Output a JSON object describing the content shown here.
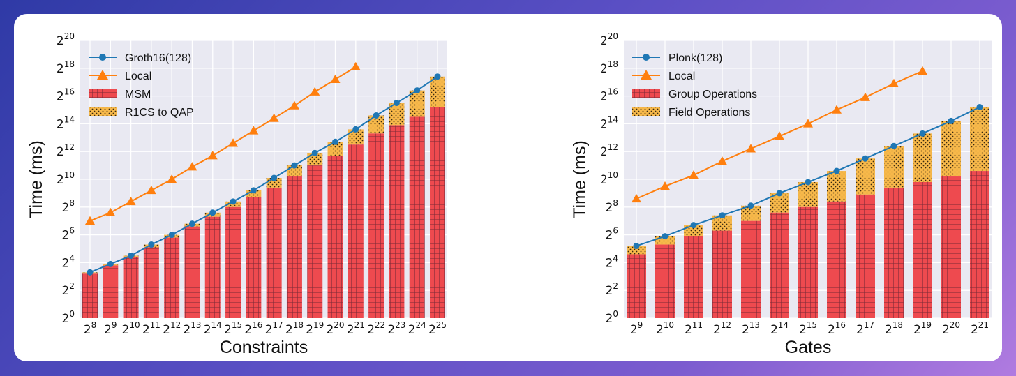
{
  "colors": {
    "series_line": "#1f77b4",
    "local_line": "#ff7f0e",
    "bar_bottom": "#ee4a4f",
    "bar_bottom_grid": "#7a2a36",
    "bar_top": "#f7b84a",
    "bar_top_dots": "#3a2a10",
    "plot_bg": "#e9e9f2",
    "grid": "#ffffff"
  },
  "chart_data": [
    {
      "type": "bar",
      "title": "",
      "xlabel": "Constraints",
      "ylabel": "Time (ms)",
      "y_scale": "log2",
      "ylim_exp": [
        0,
        20
      ],
      "y_ticks": [
        {
          "base": "2",
          "exp": "0"
        },
        {
          "base": "2",
          "exp": "2"
        },
        {
          "base": "2",
          "exp": "4"
        },
        {
          "base": "2",
          "exp": "6"
        },
        {
          "base": "2",
          "exp": "8"
        },
        {
          "base": "2",
          "exp": "10"
        },
        {
          "base": "2",
          "exp": "12"
        },
        {
          "base": "2",
          "exp": "14"
        },
        {
          "base": "2",
          "exp": "16"
        },
        {
          "base": "2",
          "exp": "18"
        },
        {
          "base": "2",
          "exp": "20"
        }
      ],
      "categories": [
        {
          "base": "2",
          "exp": "8"
        },
        {
          "base": "2",
          "exp": "9"
        },
        {
          "base": "2",
          "exp": "10"
        },
        {
          "base": "2",
          "exp": "11"
        },
        {
          "base": "2",
          "exp": "12"
        },
        {
          "base": "2",
          "exp": "13"
        },
        {
          "base": "2",
          "exp": "14"
        },
        {
          "base": "2",
          "exp": "15"
        },
        {
          "base": "2",
          "exp": "16"
        },
        {
          "base": "2",
          "exp": "17"
        },
        {
          "base": "2",
          "exp": "18"
        },
        {
          "base": "2",
          "exp": "19"
        },
        {
          "base": "2",
          "exp": "20"
        },
        {
          "base": "2",
          "exp": "21"
        },
        {
          "base": "2",
          "exp": "22"
        },
        {
          "base": "2",
          "exp": "23"
        },
        {
          "base": "2",
          "exp": "24"
        },
        {
          "base": "2",
          "exp": "25"
        }
      ],
      "legend": [
        "Groth16(128)",
        "Local",
        "MSM",
        "R1CS to QAP"
      ],
      "legend_position": "top-left",
      "grid": true,
      "series": [
        {
          "name": "Groth16(128)",
          "kind": "line-circle",
          "values_log2": [
            3.3,
            3.9,
            4.5,
            5.3,
            6.0,
            6.8,
            7.6,
            8.4,
            9.2,
            10.1,
            11.0,
            11.9,
            12.7,
            13.6,
            14.6,
            15.5,
            16.4,
            17.4
          ]
        },
        {
          "name": "Local",
          "kind": "line-triangle",
          "values_log2": [
            7.0,
            7.6,
            8.4,
            9.2,
            10.0,
            10.9,
            11.7,
            12.6,
            13.5,
            14.4,
            15.3,
            16.3,
            17.2,
            18.1
          ]
        },
        {
          "name": "MSM",
          "kind": "bar-bottom",
          "values_log2": [
            3.2,
            3.8,
            4.4,
            5.1,
            5.8,
            6.6,
            7.3,
            8.0,
            8.7,
            9.4,
            10.2,
            11.0,
            11.7,
            12.5,
            13.3,
            13.9,
            14.5,
            15.2
          ]
        },
        {
          "name": "R1CS to QAP",
          "kind": "bar-top",
          "values_log2": [
            3.3,
            3.9,
            4.5,
            5.3,
            6.0,
            6.8,
            7.6,
            8.4,
            9.2,
            10.1,
            11.0,
            11.9,
            12.7,
            13.6,
            14.6,
            15.5,
            16.4,
            17.4
          ]
        }
      ]
    },
    {
      "type": "bar",
      "title": "",
      "xlabel": "Gates",
      "ylabel": "Time (ms)",
      "y_scale": "log2",
      "ylim_exp": [
        0,
        20
      ],
      "y_ticks": [
        {
          "base": "2",
          "exp": "0"
        },
        {
          "base": "2",
          "exp": "2"
        },
        {
          "base": "2",
          "exp": "4"
        },
        {
          "base": "2",
          "exp": "6"
        },
        {
          "base": "2",
          "exp": "8"
        },
        {
          "base": "2",
          "exp": "10"
        },
        {
          "base": "2",
          "exp": "12"
        },
        {
          "base": "2",
          "exp": "14"
        },
        {
          "base": "2",
          "exp": "16"
        },
        {
          "base": "2",
          "exp": "18"
        },
        {
          "base": "2",
          "exp": "20"
        }
      ],
      "categories": [
        {
          "base": "2",
          "exp": "9"
        },
        {
          "base": "2",
          "exp": "10"
        },
        {
          "base": "2",
          "exp": "11"
        },
        {
          "base": "2",
          "exp": "12"
        },
        {
          "base": "2",
          "exp": "13"
        },
        {
          "base": "2",
          "exp": "14"
        },
        {
          "base": "2",
          "exp": "15"
        },
        {
          "base": "2",
          "exp": "16"
        },
        {
          "base": "2",
          "exp": "17"
        },
        {
          "base": "2",
          "exp": "18"
        },
        {
          "base": "2",
          "exp": "19"
        },
        {
          "base": "2",
          "exp": "20"
        },
        {
          "base": "2",
          "exp": "21"
        }
      ],
      "legend": [
        "Plonk(128)",
        "Local",
        "Group Operations",
        "Field Operations"
      ],
      "legend_position": "top-left",
      "grid": true,
      "series": [
        {
          "name": "Plonk(128)",
          "kind": "line-circle",
          "values_log2": [
            5.2,
            5.9,
            6.7,
            7.4,
            8.1,
            9.0,
            9.8,
            10.6,
            11.5,
            12.4,
            13.3,
            14.2,
            15.2
          ]
        },
        {
          "name": "Local",
          "kind": "line-triangle",
          "values_log2": [
            8.6,
            9.5,
            10.3,
            11.3,
            12.2,
            13.1,
            14.0,
            15.0,
            15.9,
            16.9,
            17.8
          ]
        },
        {
          "name": "Group Operations",
          "kind": "bar-bottom",
          "values_log2": [
            4.6,
            5.3,
            5.9,
            6.3,
            7.0,
            7.6,
            8.0,
            8.4,
            8.9,
            9.4,
            9.8,
            10.2,
            10.6
          ]
        },
        {
          "name": "Field Operations",
          "kind": "bar-top",
          "values_log2": [
            5.2,
            5.9,
            6.7,
            7.4,
            8.1,
            9.0,
            9.8,
            10.6,
            11.5,
            12.4,
            13.3,
            14.2,
            15.2
          ]
        }
      ]
    }
  ]
}
